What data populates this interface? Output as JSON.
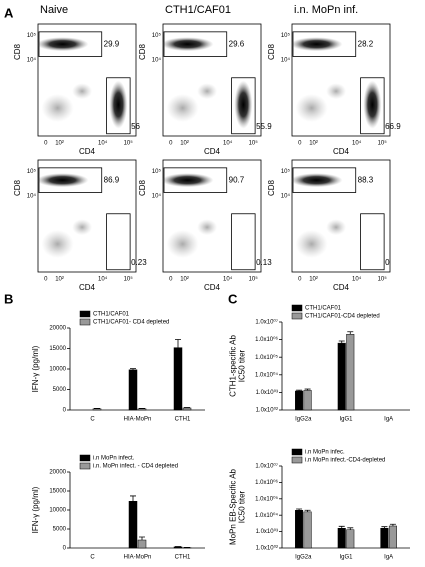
{
  "panel_labels": [
    "A",
    "B",
    "C"
  ],
  "panel_a": {
    "columns": [
      "Naive",
      "CTH1/CAF01",
      "i.n. MoPn inf."
    ],
    "xlabel": "CD4",
    "ylabel": "CD8",
    "xticks": [
      "0",
      "10²",
      "10⁴",
      "10⁵"
    ],
    "yticks": [
      "10⁵",
      "10⁴"
    ],
    "plots": [
      {
        "cd8_gate": 29.9,
        "cd4_gate": 56
      },
      {
        "cd8_gate": 29.6,
        "cd4_gate": 55.9
      },
      {
        "cd8_gate": 28.2,
        "cd4_gate": 66.9
      },
      {
        "cd8_gate": 86.9,
        "cd4_gate": 0.23
      },
      {
        "cd8_gate": 90.7,
        "cd4_gate": 0.13
      },
      {
        "cd8_gate": 88.3,
        "cd4_gate": 0
      }
    ]
  },
  "chart_data": [
    {
      "type": "bar",
      "ylabel": [
        "IFN-γ (pg/ml)"
      ],
      "categories": [
        "C",
        "HIA-MoPn",
        "CTH1"
      ],
      "ylim": [
        0,
        20000
      ],
      "yticks": [
        0,
        5000,
        10000,
        15000,
        20000
      ],
      "series": [
        {
          "name": "CTH1/CAF01",
          "color": "#000000",
          "values": [
            0,
            9800,
            15200
          ],
          "errors": [
            0,
            300,
            2000
          ]
        },
        {
          "name": "CTH1/CAF01- CD4 depleted",
          "color": "#999999",
          "values": [
            300,
            300,
            500
          ],
          "errors": [
            100,
            100,
            100
          ]
        }
      ]
    },
    {
      "type": "bar",
      "ylabel": [
        "IFN-γ (pg/ml)"
      ],
      "categories": [
        "C",
        "HIA-MoPn",
        "CTH1"
      ],
      "ylim": [
        0,
        20000
      ],
      "yticks": [
        0,
        5000,
        10000,
        15000,
        20000
      ],
      "series": [
        {
          "name": "i.n MoPn infect.",
          "color": "#000000",
          "values": [
            0,
            12300,
            300
          ],
          "errors": [
            0,
            1400,
            100
          ]
        },
        {
          "name": "i.n. MoPn infect. - CD4 depleted",
          "color": "#999999",
          "values": [
            0,
            2100,
            100
          ],
          "errors": [
            0,
            800,
            50
          ]
        }
      ]
    },
    {
      "type": "bar",
      "log": true,
      "ylabel": [
        "CTH1-specific Ab",
        "IC50 titer"
      ],
      "categories": [
        "IgG2a",
        "IgG1",
        "IgA"
      ],
      "ylim": [
        100,
        10000000
      ],
      "yticks": [
        {
          "value": 100,
          "label": "1.0x10⁰²"
        },
        {
          "value": 1000,
          "label": "1.0x10⁰³"
        },
        {
          "value": 10000,
          "label": "1.0x10⁰⁴"
        },
        {
          "value": 100000,
          "label": "1.0x10⁰⁵"
        },
        {
          "value": 1000000,
          "label": "1.0x10⁰⁶"
        },
        {
          "value": 10000000,
          "label": "1.0x10⁰⁷"
        }
      ],
      "series": [
        {
          "name": "CTH1/CAF01",
          "color": "#000000",
          "values": [
            1200,
            630000,
            null
          ],
          "errors": [
            150,
            200000,
            null
          ]
        },
        {
          "name": "CTH1/CAF01-CD4 depleted",
          "color": "#999999",
          "values": [
            1300,
            2000000,
            null
          ],
          "errors": [
            250,
            800000,
            null
          ]
        }
      ]
    },
    {
      "type": "bar",
      "log": true,
      "ylabel": [
        "MoPn EB-Specific Ab",
        "IC50 titer"
      ],
      "categories": [
        "IgG2a",
        "IgG1",
        "IgA"
      ],
      "ylim": [
        100,
        10000000
      ],
      "yticks": [
        {
          "value": 100,
          "label": "1.0x10⁰²"
        },
        {
          "value": 1000,
          "label": "1.0x10⁰³"
        },
        {
          "value": 10000,
          "label": "1.0x10⁰⁴"
        },
        {
          "value": 100000,
          "label": "1.0x10⁰⁵"
        },
        {
          "value": 1000000,
          "label": "1.0x10⁰⁶"
        },
        {
          "value": 10000000,
          "label": "1.0x10⁰⁷"
        }
      ],
      "series": [
        {
          "name": "i.n MoPn infec.",
          "color": "#000000",
          "values": [
            20000,
            1600,
            1600
          ],
          "errors": [
            4000,
            500,
            400
          ]
        },
        {
          "name": "i.n MoPn infect.-CD4-depleted",
          "color": "#999999",
          "values": [
            16000,
            1300,
            2200
          ],
          "errors": [
            4000,
            400,
            600
          ]
        }
      ]
    }
  ]
}
